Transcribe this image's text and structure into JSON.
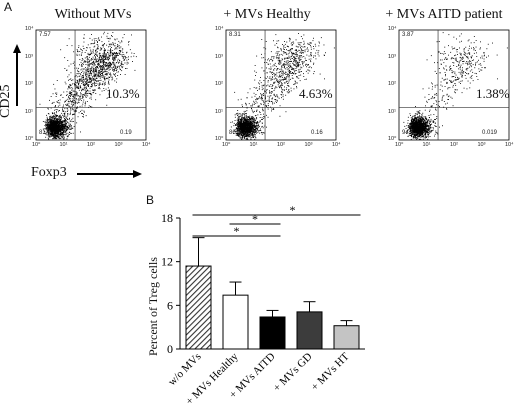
{
  "panel_a": {
    "letter": "A",
    "y_axis_label": "CD25",
    "x_axis_label": "Foxp3",
    "plots": [
      {
        "title": "Without MVs",
        "main_percent": "10.3%",
        "quadrants": {
          "upper_left": "7.57",
          "lower_left": "81.9",
          "lower_right": "0.19"
        },
        "density": "high"
      },
      {
        "title": "+ MVs Healthy",
        "main_percent": "4.63%",
        "quadrants": {
          "upper_left": "8.31",
          "lower_left": "86.9",
          "lower_right": "0.16"
        },
        "density": "medium"
      },
      {
        "title": "+ MVs AITD patient",
        "main_percent": "1.38%",
        "quadrants": {
          "upper_left": "3.87",
          "lower_left": "94.7",
          "lower_right": "0.019"
        },
        "density": "low"
      }
    ],
    "axis_ticks": [
      "10⁰",
      "10¹",
      "10²",
      "10³",
      "10⁴"
    ]
  },
  "panel_b": {
    "letter": "B",
    "significance_symbol": "*"
  },
  "chart_data": {
    "type": "bar",
    "ylabel": "Percent of Treg cells",
    "xlabel": "",
    "ylim": [
      0,
      18
    ],
    "yticks": [
      0,
      6,
      12,
      18
    ],
    "categories": [
      "w/o MVs",
      "+ MVs Healthy",
      "+ MVs AITD",
      "+ MVs GD",
      "+ MVs HT"
    ],
    "values": [
      11.4,
      7.4,
      4.4,
      5.1,
      3.2
    ],
    "errors": [
      3.9,
      1.8,
      0.9,
      1.4,
      0.7
    ],
    "fills": [
      "hatched",
      "#ffffff",
      "#000000",
      "#3c3c3c",
      "#c4c4c4"
    ],
    "significance": [
      {
        "from": 0,
        "to": 2,
        "label": "*"
      },
      {
        "from": 1,
        "to": 2,
        "label": "*"
      },
      {
        "from": 0,
        "to": 4,
        "label": "*"
      }
    ]
  }
}
